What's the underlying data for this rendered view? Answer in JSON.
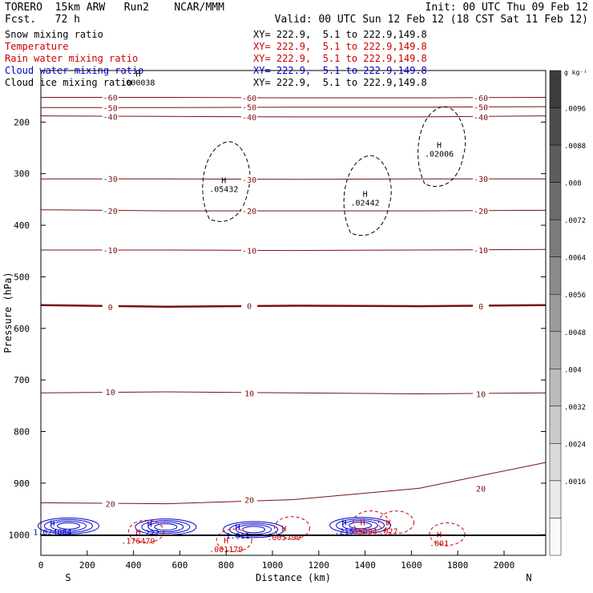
{
  "header": {
    "model": "TORERO  15km ARW   Run2    NCAR/MMM",
    "init": "Init: 00 UTC Thu 09 Feb 12",
    "fcst": "Fcst.   72 h",
    "valid": "Valid: 00 UTC Sun 12 Feb 12 (18 CST Sat 11 Feb 12)"
  },
  "fields": [
    {
      "name": "Snow mixing ratio",
      "xy": "XY= 222.9,  5.1 to 222.9,149.8",
      "color": "#000000"
    },
    {
      "name": "Temperature",
      "xy": "XY= 222.9,  5.1 to 222.9,149.8",
      "color": "#cc0000"
    },
    {
      "name": "Rain water mixing ratio",
      "xy": "XY= 222.9,  5.1 to 222.9,149.8",
      "color": "#cc0000"
    },
    {
      "name": "Cloud water mixing ratio",
      "xy": "XY= 222.9,  5.1 to 222.9,149.8",
      "color": "#0000cc"
    },
    {
      "name": "Cloud ice mixing ratio",
      "xy": "XY= 222.9,  5.1 to 222.9,149.8",
      "color": "#000000"
    }
  ],
  "chart_data": {
    "type": "line",
    "xlabel": "Distance (km)",
    "ylabel": "Pressure (hPa)",
    "xlim": [
      0,
      2180
    ],
    "ylim": [
      1040,
      100
    ],
    "xticks": [
      0,
      200,
      400,
      600,
      800,
      1000,
      1200,
      1400,
      1600,
      1800,
      2000
    ],
    "yticks": [
      200,
      300,
      400,
      500,
      600,
      700,
      800,
      900,
      1000
    ],
    "x_end_labels": {
      "left": "S",
      "right": "N"
    },
    "temperature_isotherms": [
      {
        "value": -60,
        "label": "-60",
        "p": [
          152,
          152,
          153,
          153,
          152
        ]
      },
      {
        "value": -50,
        "label": "-50",
        "p": [
          172,
          172,
          171,
          171,
          170
        ]
      },
      {
        "value": -40,
        "label": "-40",
        "p": [
          188,
          189,
          190,
          190,
          188
        ]
      },
      {
        "value": -30,
        "label": "-30",
        "p": [
          310,
          310,
          311,
          310,
          310
        ]
      },
      {
        "value": -20,
        "label": "-20",
        "p": [
          370,
          372,
          372,
          372,
          371
        ]
      },
      {
        "value": -10,
        "label": "-10",
        "p": [
          448,
          448,
          449,
          448,
          447
        ]
      },
      {
        "value": 0,
        "label": "0",
        "p": [
          555,
          558,
          556,
          557,
          555
        ]
      },
      {
        "value": 10,
        "label": "10",
        "p": [
          725,
          723,
          725,
          727,
          725
        ]
      },
      {
        "value": 20,
        "label": "20",
        "p": [
          938,
          940,
          932,
          910,
          860
        ]
      }
    ],
    "temperature_labels_shown": [
      "-60",
      "-60",
      "-50",
      "-40",
      "-30",
      "-30",
      "-30",
      "-20",
      "-20",
      "-20",
      "-10",
      "-10",
      "0",
      "0",
      "0",
      "10",
      "10",
      "10",
      "20",
      "20",
      "20",
      "20"
    ],
    "maxima_labels": [
      {
        "field": "Snow mixing ratio",
        "mark": "H",
        "value": ".05432",
        "x": 790,
        "p": 318
      },
      {
        "field": "Snow mixing ratio",
        "mark": "H",
        "value": ".02442",
        "x": 1400,
        "p": 345
      },
      {
        "field": "Snow mixing ratio",
        "mark": "H",
        "value": ".02006",
        "x": 1720,
        "p": 250
      },
      {
        "field": "Cloud ice mixing ratio",
        "mark": "H",
        "value": ".000038",
        "x": 420,
        "p": 112
      },
      {
        "field": "Cloud water mixing ratio",
        "mark": "H",
        "value": "1.024884",
        "x": 50,
        "p": 983
      },
      {
        "field": "Cloud water mixing ratio",
        "mark": "H",
        "value": ".222",
        "x": 470,
        "p": 985
      },
      {
        "field": "Cloud water mixing ratio",
        "mark": "H",
        "value": "1.011",
        "x": 850,
        "p": 990
      },
      {
        "field": "Cloud water mixing ratio",
        "mark": "H",
        "value": ".215",
        "x": 1310,
        "p": 982
      },
      {
        "field": "Rain water mixing ratio",
        "mark": "H",
        "value": ".176479",
        "x": 420,
        "p": 1000
      },
      {
        "field": "Rain water mixing ratio",
        "mark": "H",
        "value": ".001179",
        "x": 800,
        "p": 1017
      },
      {
        "field": "Rain water mixing ratio",
        "mark": "H",
        "value": ".005799",
        "x": 1050,
        "p": 993
      },
      {
        "field": "Rain water mixing ratio",
        "mark": "H",
        "value": ".05994",
        "x": 1390,
        "p": 982
      },
      {
        "field": "Rain water mixing ratio",
        "mark": "H",
        "value": ".027",
        "x": 1500,
        "p": 982
      },
      {
        "field": "Rain water mixing ratio",
        "mark": "H",
        "value": ".001",
        "x": 1720,
        "p": 1005
      }
    ],
    "colorbar": {
      "units": "g kg⁻¹",
      "ticks": [
        ".0096",
        ".0088",
        ".008",
        ".0072",
        ".0064",
        ".0056",
        ".0048",
        ".004",
        ".0032",
        ".0024",
        ".0016"
      ]
    }
  }
}
